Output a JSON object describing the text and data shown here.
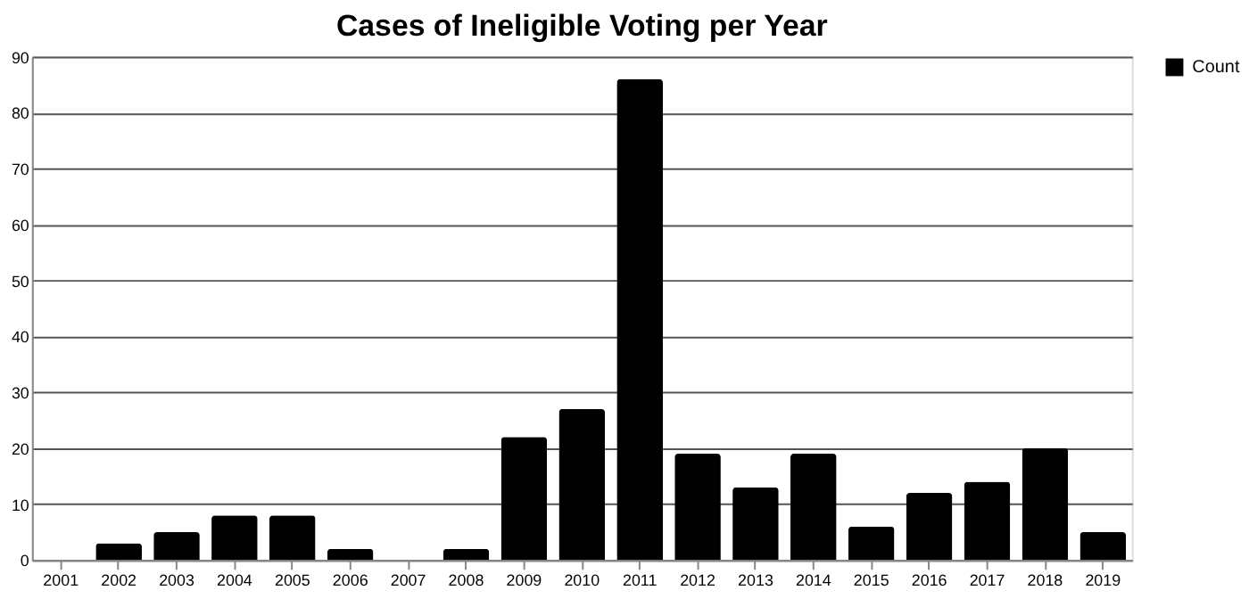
{
  "chart_data": {
    "type": "bar",
    "title": "Cases of Ineligible Voting per Year",
    "categories": [
      "2001",
      "2002",
      "2003",
      "2004",
      "2005",
      "2006",
      "2007",
      "2008",
      "2009",
      "2010",
      "2011",
      "2012",
      "2013",
      "2014",
      "2015",
      "2016",
      "2017",
      "2018",
      "2019"
    ],
    "series": [
      {
        "name": "Count",
        "color": "#000000",
        "values": [
          0,
          3,
          5,
          8,
          8,
          2,
          0,
          2,
          22,
          27,
          86,
          19,
          13,
          19,
          6,
          12,
          14,
          20,
          5
        ]
      }
    ],
    "ylim": [
      0,
      90
    ],
    "yticks": [
      0,
      10,
      20,
      30,
      40,
      50,
      60,
      70,
      80,
      90
    ],
    "grid": "y",
    "legend": "right"
  }
}
